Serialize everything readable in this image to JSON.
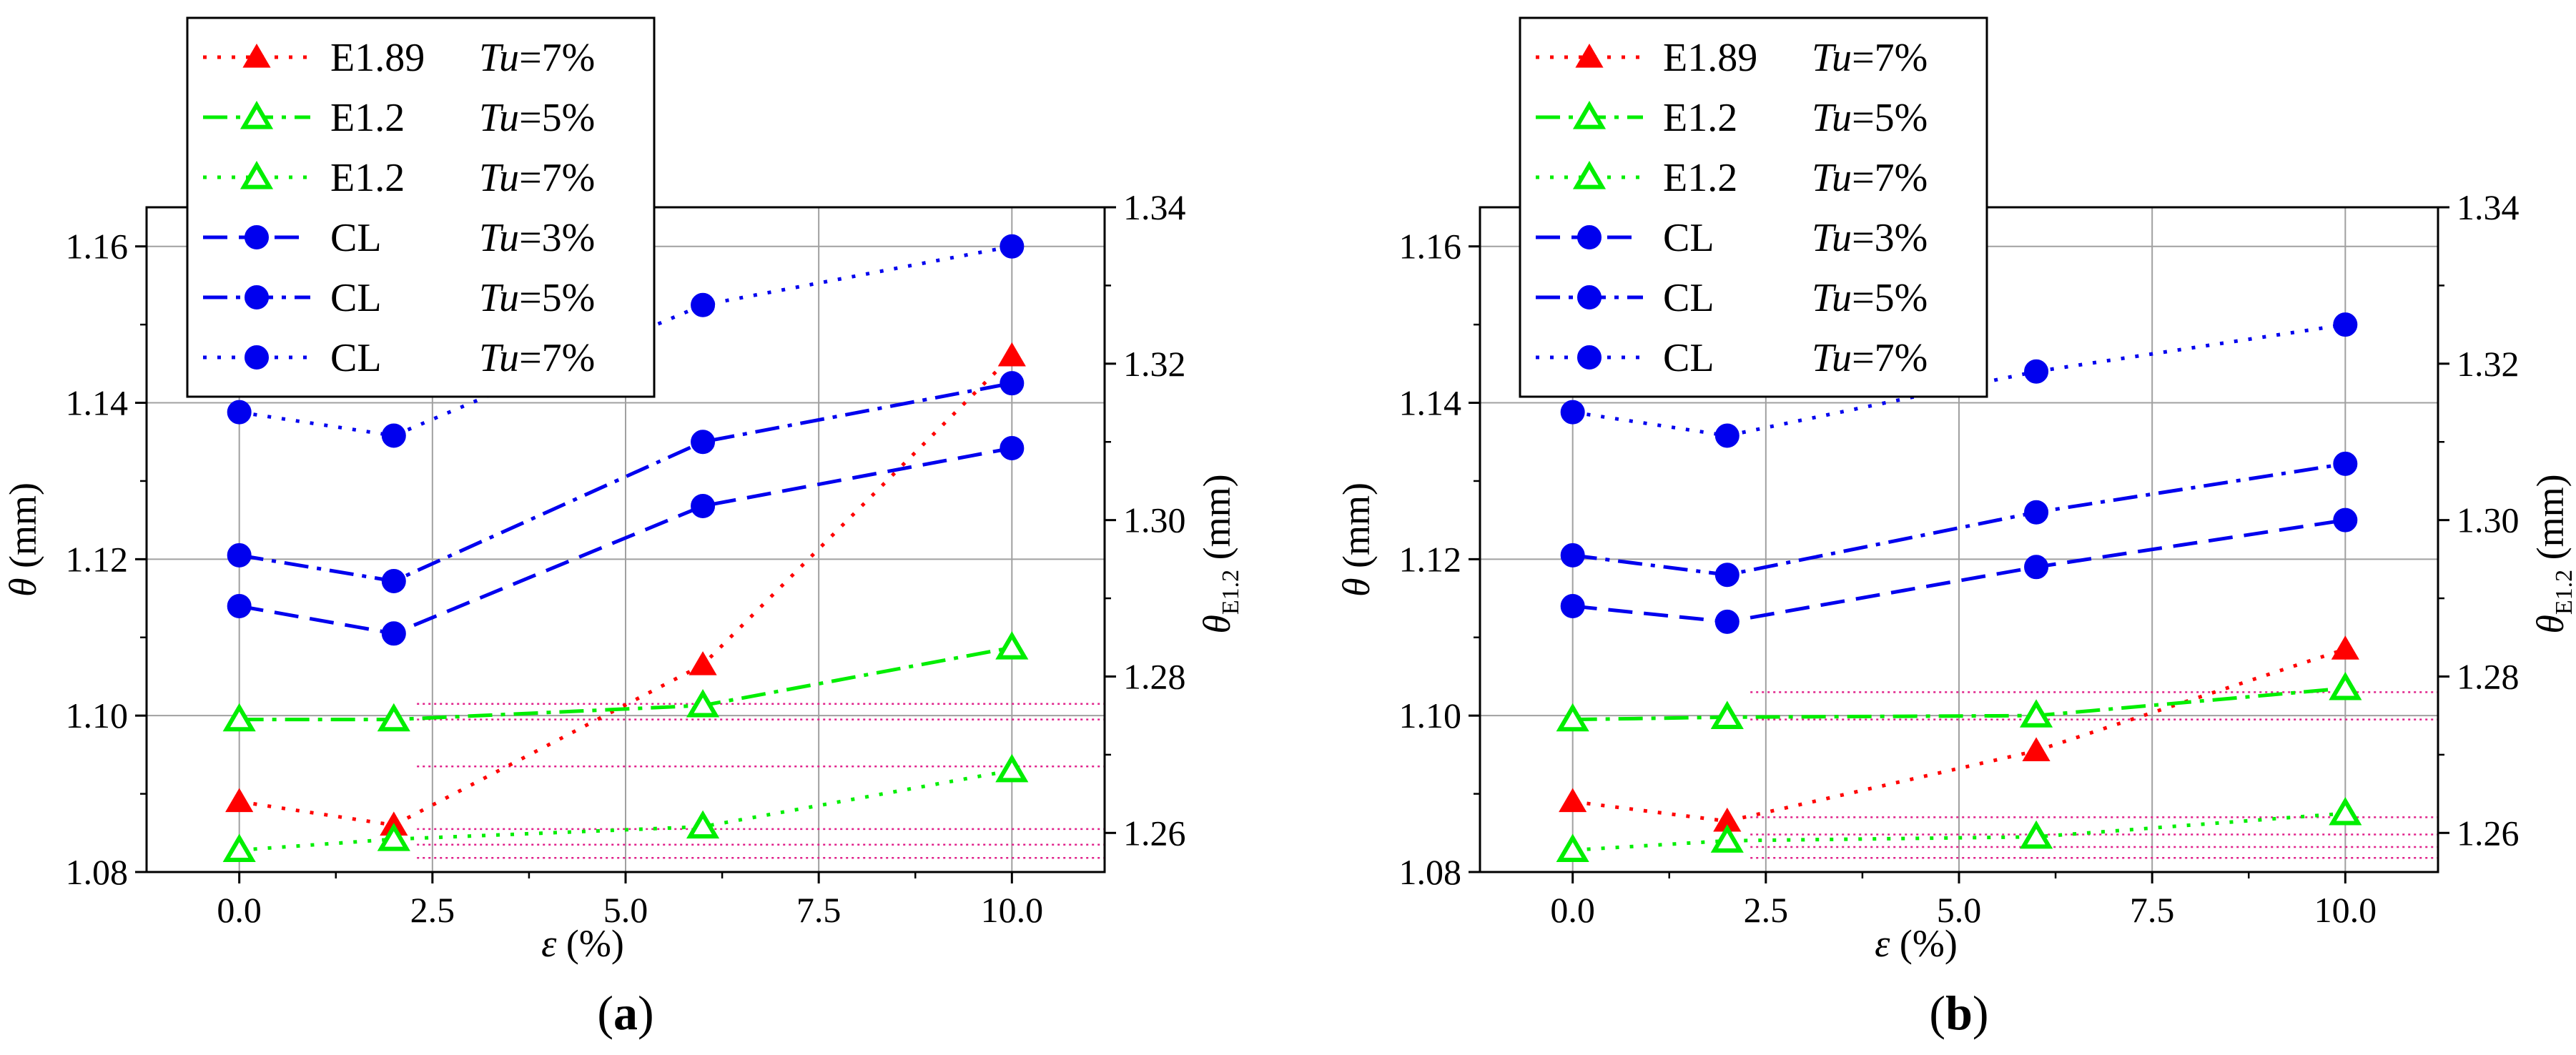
{
  "chart_data": [
    {
      "type": "line",
      "panel_label": "(a)",
      "panel_letter": "a",
      "xlabel": "ε (%)",
      "ylabel": "θ (mm)",
      "ylabel_right": "θE1.2 (mm)",
      "xlim": [
        -1.2,
        11.2
      ],
      "ylim": [
        1.08,
        1.165
      ],
      "ylim_right": [
        1.255,
        1.34
      ],
      "xticks": [
        0.0,
        2.5,
        5.0,
        7.5,
        10.0
      ],
      "xtick_labels": [
        "0.0",
        "2.5",
        "5.0",
        "7.5",
        "10.0"
      ],
      "yticks": [
        1.08,
        1.1,
        1.12,
        1.14,
        1.16
      ],
      "ytick_labels": [
        "1.08",
        "1.10",
        "1.12",
        "1.14",
        "1.16"
      ],
      "yticks_right": [
        1.26,
        1.28,
        1.3,
        1.32,
        1.34
      ],
      "ytick_labels_right": [
        "1.26",
        "1.28",
        "1.30",
        "1.32",
        "1.34"
      ],
      "grid": true,
      "legend_location": "top-left",
      "x": [
        0,
        2,
        6,
        10
      ],
      "series": [
        {
          "name": "E1.89",
          "tu_label": "Tu=7%",
          "values": [
            1.089,
            1.086,
            1.1065,
            1.146
          ],
          "axis": "left",
          "color": "#ff0000",
          "marker": "triangle-filled",
          "dash": "dot"
        },
        {
          "name": "E1.2",
          "tu_label": "Tu=5%",
          "values": [
            1.2745,
            1.2745,
            1.2763,
            1.2837
          ],
          "axis": "right",
          "color": "#00ee00",
          "marker": "triangle-open",
          "dash": "dashdot"
        },
        {
          "name": "E1.2",
          "tu_label": "Tu=7%",
          "values": [
            1.2578,
            1.2592,
            1.2608,
            1.268
          ],
          "axis": "right",
          "color": "#00ee00",
          "marker": "triangle-open",
          "dash": "dot"
        },
        {
          "name": "CL",
          "tu_label": "Tu=3%",
          "values": [
            1.114,
            1.1105,
            1.1268,
            1.1342
          ],
          "axis": "left",
          "color": "#0000ee",
          "marker": "circle",
          "dash": "dash"
        },
        {
          "name": "CL",
          "tu_label": "Tu=5%",
          "values": [
            1.1205,
            1.1172,
            1.135,
            1.1425
          ],
          "axis": "left",
          "color": "#0000ee",
          "marker": "circle",
          "dash": "dashdot"
        },
        {
          "name": "CL",
          "tu_label": "Tu=7%",
          "values": [
            1.1388,
            1.1358,
            1.1525,
            1.16
          ],
          "axis": "left",
          "color": "#0000ee",
          "marker": "circle",
          "dash": "dot"
        }
      ],
      "reference_lines": [
        1.1015,
        1.0995,
        1.0935,
        1.0855,
        1.0835,
        1.0818
      ]
    },
    {
      "type": "line",
      "panel_label": "(b)",
      "panel_letter": "b",
      "xlabel": "ε (%)",
      "ylabel": "θ (mm)",
      "ylabel_right": "θE1.2 (mm)",
      "xlim": [
        -1.2,
        11.2
      ],
      "ylim": [
        1.08,
        1.165
      ],
      "ylim_right": [
        1.255,
        1.34
      ],
      "xticks": [
        0.0,
        2.5,
        5.0,
        7.5,
        10.0
      ],
      "xtick_labels": [
        "0.0",
        "2.5",
        "5.0",
        "7.5",
        "10.0"
      ],
      "yticks": [
        1.08,
        1.1,
        1.12,
        1.14,
        1.16
      ],
      "ytick_labels": [
        "1.08",
        "1.10",
        "1.12",
        "1.14",
        "1.16"
      ],
      "yticks_right": [
        1.26,
        1.28,
        1.3,
        1.32,
        1.34
      ],
      "ytick_labels_right": [
        "1.26",
        "1.28",
        "1.30",
        "1.32",
        "1.34"
      ],
      "grid": true,
      "legend_location": "top-left",
      "x": [
        0,
        2,
        6,
        10
      ],
      "series": [
        {
          "name": "E1.89",
          "tu_label": "Tu=7%",
          "values": [
            1.089,
            1.0865,
            1.0955,
            1.1085
          ],
          "axis": "left",
          "color": "#ff0000",
          "marker": "triangle-filled",
          "dash": "dot"
        },
        {
          "name": "E1.2",
          "tu_label": "Tu=5%",
          "values": [
            1.2745,
            1.2748,
            1.275,
            1.2785
          ],
          "axis": "right",
          "color": "#00ee00",
          "marker": "triangle-open",
          "dash": "dashdot"
        },
        {
          "name": "E1.2",
          "tu_label": "Tu=7%",
          "values": [
            1.2578,
            1.259,
            1.2595,
            1.2625
          ],
          "axis": "right",
          "color": "#00ee00",
          "marker": "triangle-open",
          "dash": "dot"
        },
        {
          "name": "CL",
          "tu_label": "Tu=3%",
          "values": [
            1.114,
            1.112,
            1.119,
            1.125
          ],
          "axis": "left",
          "color": "#0000ee",
          "marker": "circle",
          "dash": "dash"
        },
        {
          "name": "CL",
          "tu_label": "Tu=5%",
          "values": [
            1.1205,
            1.118,
            1.126,
            1.1322
          ],
          "axis": "left",
          "color": "#0000ee",
          "marker": "circle",
          "dash": "dashdot"
        },
        {
          "name": "CL",
          "tu_label": "Tu=7%",
          "values": [
            1.1388,
            1.1358,
            1.144,
            1.15
          ],
          "axis": "left",
          "color": "#0000ee",
          "marker": "circle",
          "dash": "dot"
        }
      ],
      "reference_lines": [
        1.103,
        1.0995,
        1.087,
        1.0848,
        1.0832,
        1.0818
      ]
    }
  ]
}
